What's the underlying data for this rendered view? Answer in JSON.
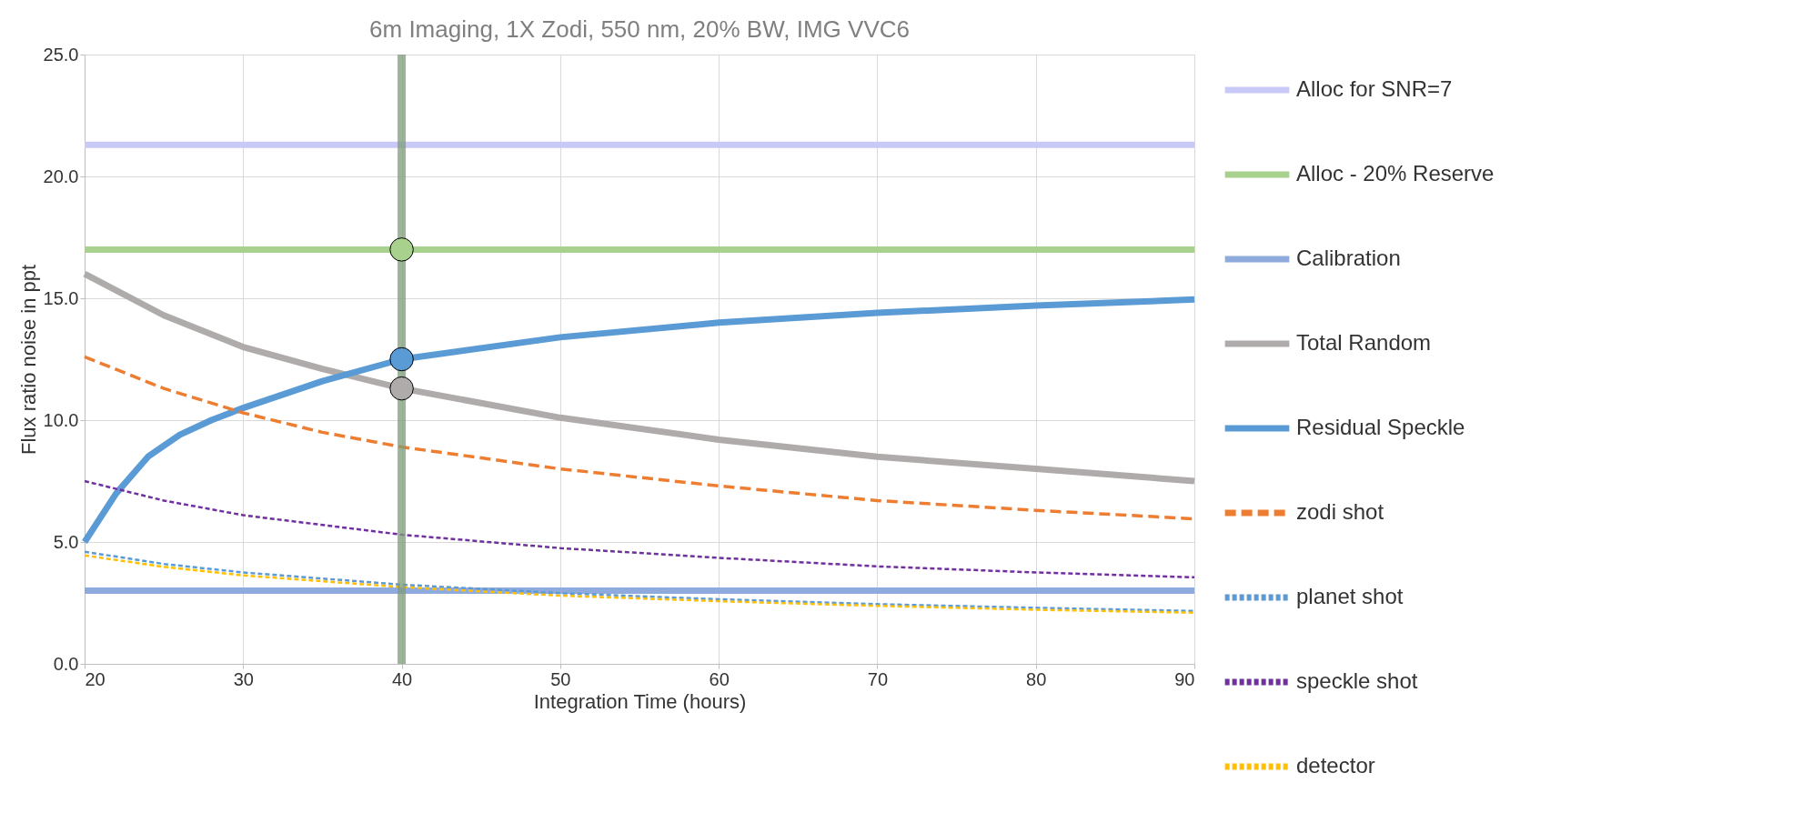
{
  "chart_data": {
    "type": "line",
    "title": "6m Imaging, 1X Zodi, 550 nm, 20% BW,  IMG VVC6",
    "xlabel": "Integration Time  (hours)",
    "ylabel": "Flux ratio noise  in  ppt",
    "xlim": [
      20,
      90
    ],
    "ylim": [
      0,
      25
    ],
    "xticks": [
      20,
      30,
      40,
      50,
      60,
      70,
      80,
      90
    ],
    "yticks": [
      {
        "value": 0,
        "label": "0.0"
      },
      {
        "value": 5,
        "label": "5.0"
      },
      {
        "value": 10,
        "label": "10.0"
      },
      {
        "value": 15,
        "label": "15.0"
      },
      {
        "value": 20,
        "label": "20.0"
      },
      {
        "value": 25,
        "label": "25.0"
      }
    ],
    "grid": true,
    "legend": "right",
    "series": [
      {
        "name": "Alloc for SNR=7",
        "color": "#c9c9f7",
        "line_style": "solid",
        "x": [
          20,
          90
        ],
        "values": [
          21.3,
          21.3
        ]
      },
      {
        "name": "Alloc - 20% Reserve",
        "color": "#a9d18e",
        "line_style": "solid",
        "x": [
          20,
          90
        ],
        "values": [
          17.0,
          17.0
        ]
      },
      {
        "name": "Calibration",
        "color": "#8faadc",
        "line_style": "solid",
        "x": [
          20,
          90
        ],
        "values": [
          3.0,
          3.0
        ]
      },
      {
        "name": "Total Random",
        "color": "#afabab",
        "line_style": "solid",
        "x": [
          20,
          25,
          30,
          35,
          40,
          50,
          60,
          70,
          80,
          90
        ],
        "values": [
          16.0,
          14.3,
          13.0,
          12.1,
          11.3,
          10.1,
          9.2,
          8.5,
          8.0,
          7.5
        ]
      },
      {
        "name": "Residual Speckle",
        "color": "#5b9bd5",
        "line_style": "solid",
        "x": [
          20,
          22,
          24,
          26,
          28,
          30,
          35,
          40,
          50,
          60,
          70,
          80,
          90
        ],
        "values": [
          5.0,
          7.0,
          8.5,
          9.4,
          10.0,
          10.5,
          11.6,
          12.5,
          13.4,
          14.0,
          14.4,
          14.7,
          14.95
        ]
      },
      {
        "name": "zodi shot",
        "color": "#ed7d31",
        "line_style": "dashed",
        "x": [
          20,
          25,
          30,
          35,
          40,
          50,
          60,
          70,
          80,
          90
        ],
        "values": [
          12.6,
          11.3,
          10.3,
          9.5,
          8.9,
          8.0,
          7.3,
          6.7,
          6.3,
          5.95
        ]
      },
      {
        "name": "planet shot",
        "color": "#5b9bd5",
        "line_style": "dotted",
        "x": [
          20,
          25,
          30,
          40,
          50,
          60,
          70,
          80,
          90
        ],
        "values": [
          4.6,
          4.1,
          3.75,
          3.25,
          2.9,
          2.65,
          2.45,
          2.3,
          2.17
        ]
      },
      {
        "name": "speckle shot",
        "color": "#7030a0",
        "line_style": "dotted",
        "x": [
          20,
          25,
          30,
          40,
          50,
          60,
          70,
          80,
          90
        ],
        "values": [
          7.5,
          6.7,
          6.1,
          5.3,
          4.75,
          4.35,
          4.0,
          3.75,
          3.55
        ]
      },
      {
        "name": "detector",
        "color": "#ffc000",
        "line_style": "dotted",
        "x": [
          20,
          25,
          30,
          40,
          50,
          60,
          70,
          80,
          90
        ],
        "values": [
          4.45,
          3.98,
          3.63,
          3.15,
          2.8,
          2.57,
          2.38,
          2.22,
          2.1
        ]
      },
      {
        "type": "scatter",
        "marker": "circle",
        "x": [
          40,
          40,
          40
        ],
        "values": [
          17.0,
          12.5,
          11.3
        ],
        "colors": [
          "#a9d18e",
          "#5b9bd5",
          "#afabab"
        ]
      }
    ],
    "ref_lines": [
      {
        "axis": "x",
        "value": 40,
        "color": "#7d9b78"
      }
    ]
  }
}
